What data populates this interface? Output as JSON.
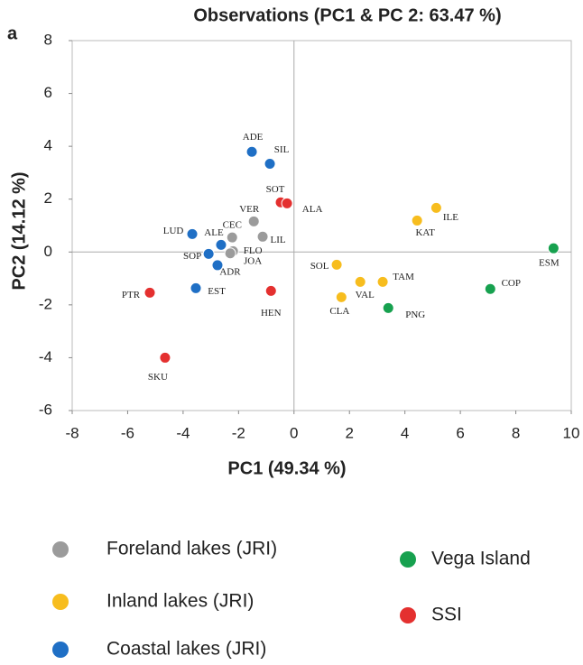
{
  "chart_data": {
    "type": "scatter",
    "panel_label": "a",
    "title": "Observations (PC1 & PC 2: 63.47 %)",
    "x_label": "PC1 (49.34 %)",
    "y_label": "PC2 (14.12 %)",
    "xlim": [
      -8,
      10
    ],
    "xticks": [
      -8,
      -6,
      -4,
      -2,
      0,
      2,
      4,
      6,
      8,
      10
    ],
    "ylim": [
      -6,
      8
    ],
    "yticks": [
      -6,
      -4,
      -2,
      0,
      2,
      4,
      6,
      8
    ],
    "series": [
      {
        "name": "Foreland lakes (JRI)",
        "color": "#9b9b9b",
        "labels": [
          "VER",
          "CEC",
          "FLO",
          "LIL",
          "JOA"
        ],
        "x": [
          -1.45,
          -2.23,
          -2.2,
          -1.13,
          -2.3
        ],
        "y": [
          1.16,
          0.55,
          0.03,
          0.58,
          -0.05
        ]
      },
      {
        "name": "Inland lakes (JRI)",
        "color": "#f7bd1e",
        "labels": [
          "ILE",
          "KAT",
          "SOL",
          "VAL",
          "TAM",
          "CLA"
        ],
        "x": [
          5.13,
          4.44,
          1.54,
          2.39,
          3.2,
          1.71
        ],
        "y": [
          1.67,
          1.19,
          -0.48,
          -1.13,
          -1.13,
          -1.71
        ]
      },
      {
        "name": "Coastal lakes (JRI)",
        "color": "#1f6fc5",
        "labels": [
          "ADE",
          "SIL",
          "LUD",
          "ALE",
          "SOP",
          "ADR",
          "EST"
        ],
        "x": [
          -1.52,
          -0.87,
          -3.67,
          -2.63,
          -3.08,
          -2.76,
          -3.54
        ],
        "y": [
          3.79,
          3.34,
          0.68,
          0.27,
          -0.07,
          -0.5,
          -1.37
        ]
      },
      {
        "name": "Vega Island",
        "color": "#17a14f",
        "labels": [
          "ESM",
          "COP",
          "PNG"
        ],
        "x": [
          9.36,
          7.08,
          3.4
        ],
        "y": [
          0.14,
          -1.4,
          -2.12
        ]
      },
      {
        "name": "SSI",
        "color": "#e4302f",
        "labels": [
          "SOT",
          "ALA",
          "PTR",
          "HEN",
          "SKU"
        ],
        "x": [
          -0.48,
          -0.25,
          -5.2,
          -0.83,
          -4.65
        ],
        "y": [
          1.88,
          1.84,
          -1.54,
          -1.47,
          -4.0
        ]
      }
    ]
  }
}
